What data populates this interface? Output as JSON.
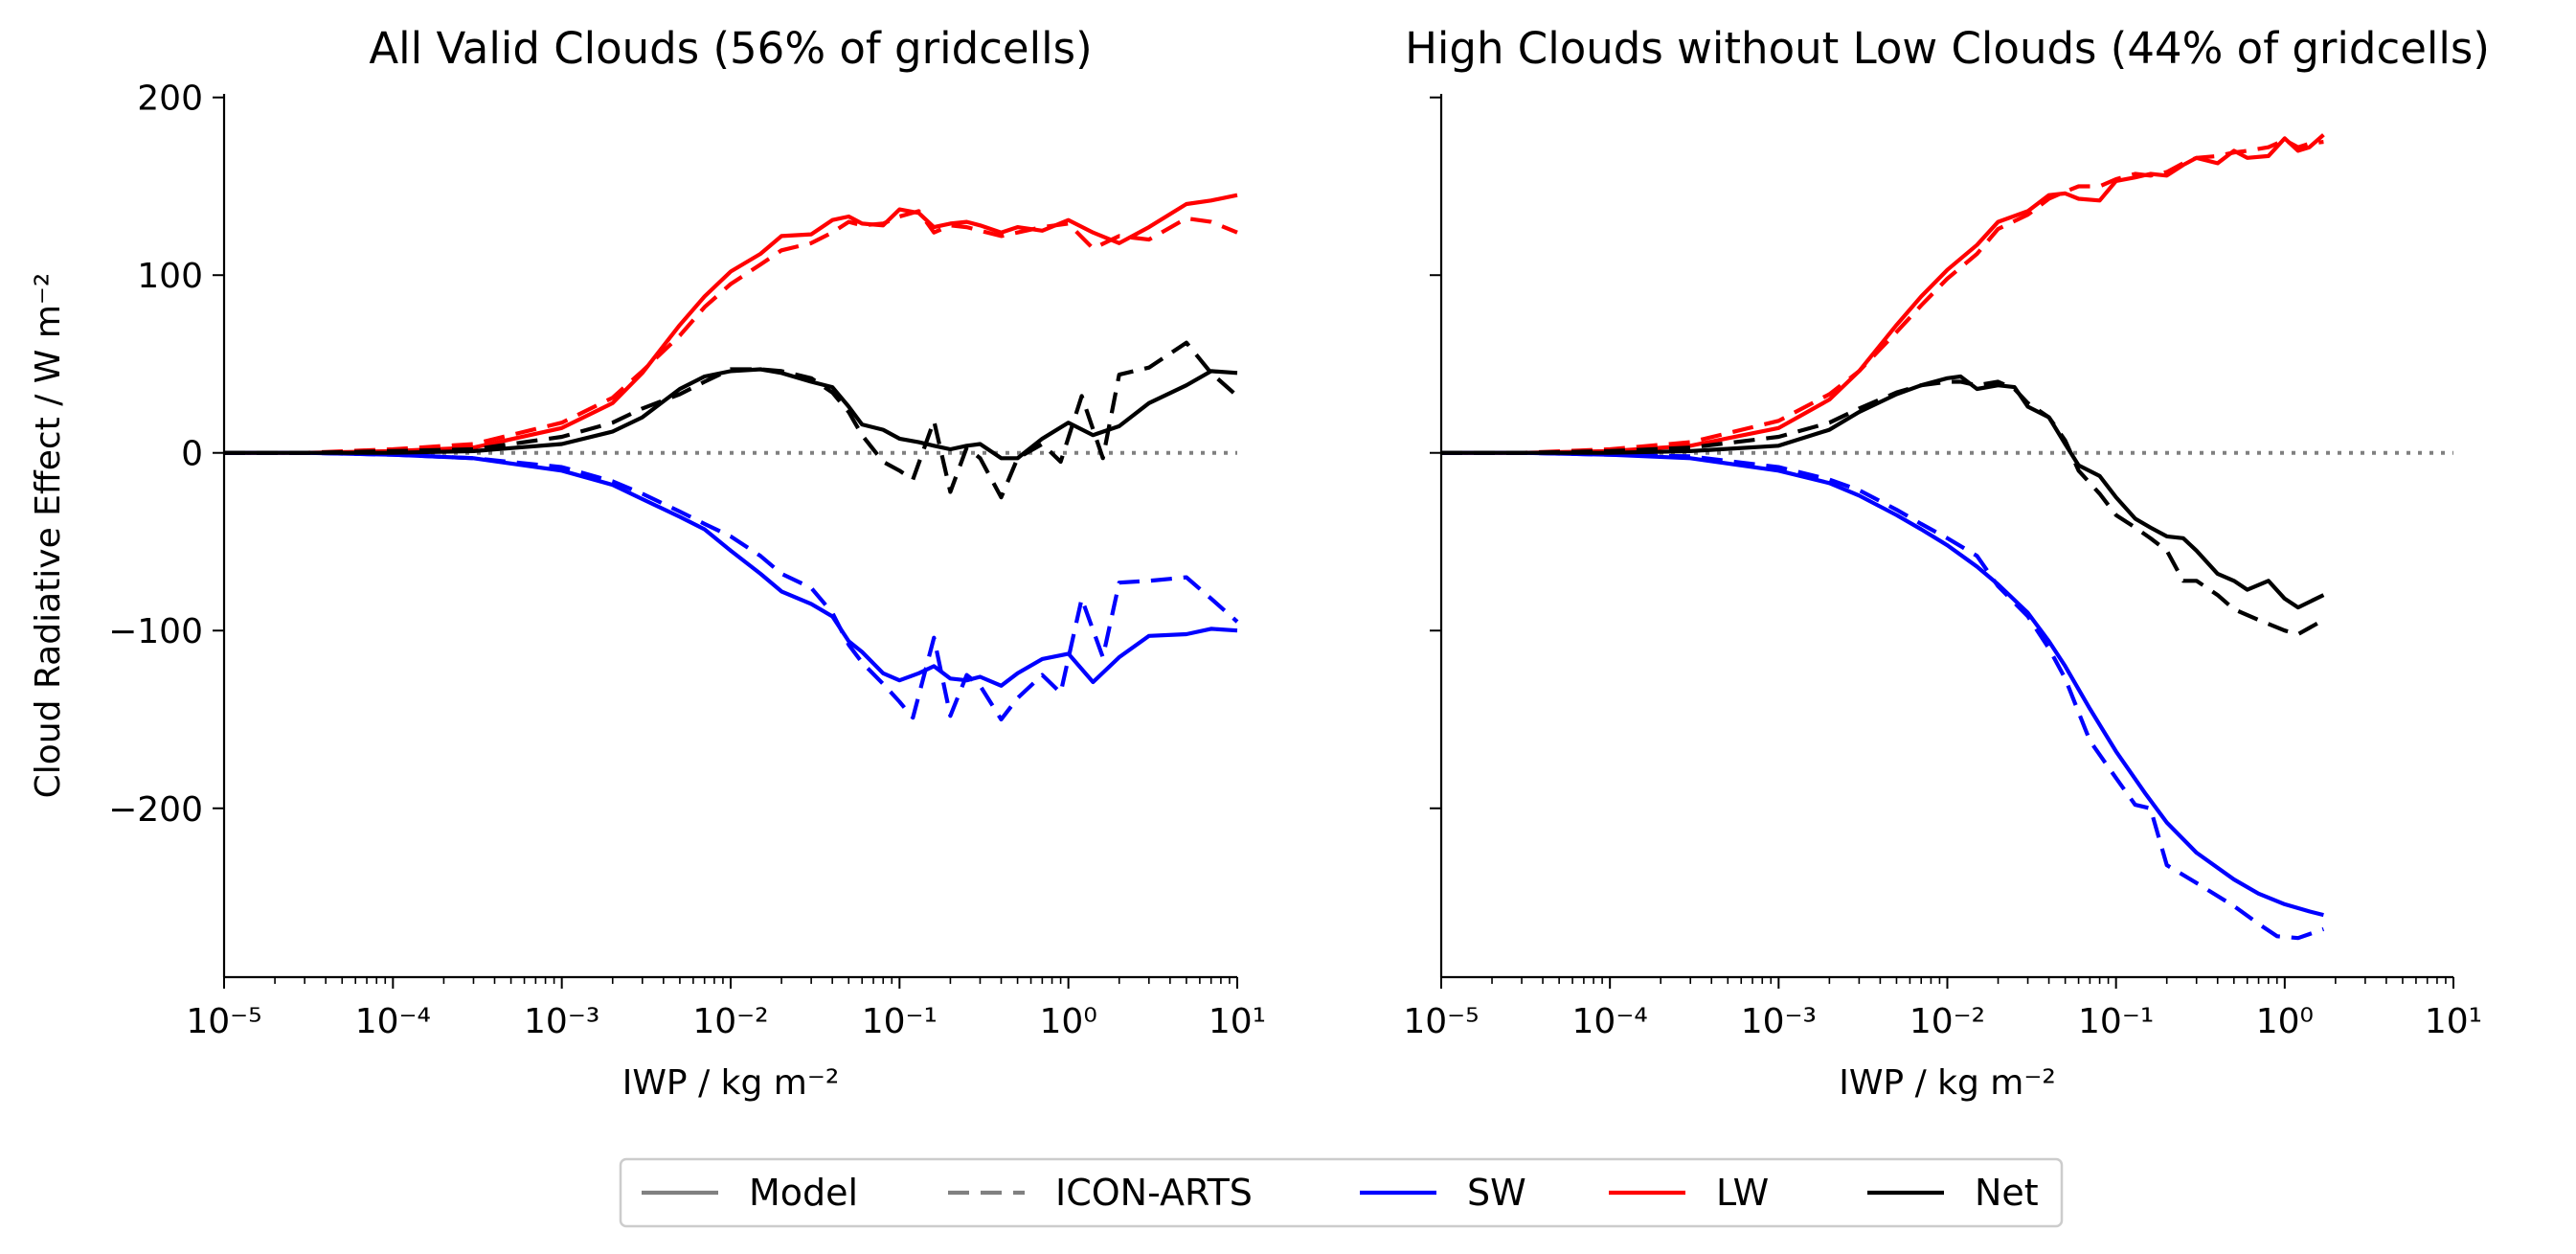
{
  "legend": {
    "items": [
      {
        "label": "Model",
        "color": "#808080",
        "dash": "solid"
      },
      {
        "label": "ICON-ARTS",
        "color": "#808080",
        "dash": "dashed"
      },
      {
        "label": "SW",
        "color": "#0000ff",
        "dash": "solid"
      },
      {
        "label": "LW",
        "color": "#ff0000",
        "dash": "solid"
      },
      {
        "label": "Net",
        "color": "#000000",
        "dash": "solid"
      }
    ],
    "placement": "bottom-center"
  },
  "chart_data": [
    {
      "type": "line",
      "title": "All Valid Clouds (56% of gridcells)",
      "xlabel": "IWP / kg m⁻²",
      "ylabel": "Cloud Radiative Effect / W m⁻²",
      "xscale": "log",
      "xlim": [
        1e-05,
        10
      ],
      "ylim": [
        -295,
        202
      ],
      "x_tick_labels": [
        "10⁻⁵",
        "10⁻⁴",
        "10⁻³",
        "10⁻²",
        "10⁻¹",
        "10⁰",
        "10¹"
      ],
      "y_tick_labels": [
        "200",
        "100",
        "0",
        "−100",
        "−200"
      ],
      "y_ticks": [
        200,
        100,
        0,
        -100,
        -200
      ],
      "zero_line": {
        "style": "dotted",
        "color": "#808080"
      },
      "series": [
        {
          "component": "LW",
          "source": "Model",
          "color": "#ff0000",
          "dash": "solid",
          "x": [
            1e-05,
            3e-05,
            0.0001,
            0.0003,
            0.001,
            0.002,
            0.003,
            0.005,
            0.007,
            0.01,
            0.015,
            0.02,
            0.03,
            0.04,
            0.05,
            0.06,
            0.08,
            0.1,
            0.13,
            0.16,
            0.2,
            0.25,
            0.3,
            0.4,
            0.5,
            0.7,
            1.0,
            1.4,
            2.0,
            3.0,
            5.0,
            7.0,
            10.0
          ],
          "y": [
            0,
            0,
            1,
            3,
            14,
            28,
            45,
            72,
            88,
            102,
            112,
            122,
            123,
            131,
            133,
            129,
            128,
            137,
            135,
            127,
            129,
            130,
            128,
            124,
            127,
            125,
            131,
            124,
            118,
            127,
            140,
            142,
            145
          ]
        },
        {
          "component": "LW",
          "source": "ICON-ARTS",
          "color": "#ff0000",
          "dash": "dashed",
          "x": [
            1e-05,
            3e-05,
            0.0001,
            0.0003,
            0.001,
            0.002,
            0.003,
            0.005,
            0.007,
            0.01,
            0.015,
            0.02,
            0.03,
            0.04,
            0.05,
            0.06,
            0.08,
            0.1,
            0.13,
            0.16,
            0.2,
            0.25,
            0.3,
            0.4,
            0.5,
            0.7,
            1.0,
            1.4,
            2.0,
            3.0,
            5.0,
            7.0,
            10.0
          ],
          "y": [
            0,
            0,
            2,
            5,
            17,
            31,
            46,
            66,
            82,
            95,
            106,
            114,
            118,
            124,
            130,
            128,
            129,
            133,
            136,
            124,
            128,
            127,
            125,
            122,
            124,
            127,
            129,
            115,
            122,
            120,
            132,
            130,
            124
          ]
        },
        {
          "component": "SW",
          "source": "Model",
          "color": "#0000ff",
          "dash": "solid",
          "x": [
            1e-05,
            3e-05,
            0.0001,
            0.0003,
            0.001,
            0.002,
            0.003,
            0.005,
            0.007,
            0.01,
            0.015,
            0.02,
            0.03,
            0.04,
            0.05,
            0.06,
            0.08,
            0.1,
            0.13,
            0.16,
            0.2,
            0.25,
            0.3,
            0.4,
            0.5,
            0.7,
            1.0,
            1.4,
            2.0,
            3.0,
            5.0,
            7.0,
            10.0
          ],
          "y": [
            0,
            0,
            -1,
            -3,
            -10,
            -18,
            -26,
            -36,
            -43,
            -55,
            -68,
            -78,
            -85,
            -92,
            -106,
            -112,
            -124,
            -128,
            -124,
            -120,
            -127,
            -128,
            -126,
            -131,
            -124,
            -116,
            -113,
            -129,
            -115,
            -103,
            -102,
            -99,
            -100
          ]
        },
        {
          "component": "SW",
          "source": "ICON-ARTS",
          "color": "#0000ff",
          "dash": "dashed",
          "x": [
            1e-05,
            3e-05,
            0.0001,
            0.0003,
            0.001,
            0.002,
            0.003,
            0.005,
            0.007,
            0.01,
            0.015,
            0.02,
            0.03,
            0.04,
            0.05,
            0.06,
            0.08,
            0.1,
            0.12,
            0.16,
            0.2,
            0.25,
            0.3,
            0.4,
            0.5,
            0.7,
            0.9,
            1.2,
            1.6,
            2.0,
            3.0,
            5.0,
            7.0,
            10.0
          ],
          "y": [
            0,
            0,
            -1,
            -3,
            -8,
            -16,
            -23,
            -33,
            -40,
            -47,
            -58,
            -68,
            -76,
            -90,
            -108,
            -118,
            -130,
            -140,
            -149,
            -104,
            -148,
            -125,
            -131,
            -150,
            -138,
            -125,
            -135,
            -82,
            -115,
            -73,
            -72,
            -70,
            -82,
            -95
          ]
        },
        {
          "component": "Net",
          "source": "Model",
          "color": "#000000",
          "dash": "solid",
          "x": [
            1e-05,
            3e-05,
            0.0001,
            0.0003,
            0.001,
            0.002,
            0.003,
            0.005,
            0.007,
            0.01,
            0.015,
            0.02,
            0.03,
            0.04,
            0.05,
            0.06,
            0.08,
            0.1,
            0.13,
            0.16,
            0.2,
            0.25,
            0.3,
            0.4,
            0.5,
            0.7,
            1.0,
            1.4,
            2.0,
            3.0,
            5.0,
            7.0,
            10.0
          ],
          "y": [
            0,
            0,
            0,
            1,
            5,
            12,
            20,
            36,
            43,
            46,
            47,
            45,
            40,
            37,
            26,
            16,
            13,
            8,
            6,
            4,
            2,
            4,
            5,
            -3,
            -3,
            8,
            17,
            10,
            15,
            28,
            38,
            46,
            45
          ]
        },
        {
          "component": "Net",
          "source": "ICON-ARTS",
          "color": "#000000",
          "dash": "dashed",
          "x": [
            1e-05,
            3e-05,
            0.0001,
            0.0003,
            0.001,
            0.002,
            0.003,
            0.005,
            0.007,
            0.01,
            0.015,
            0.02,
            0.03,
            0.04,
            0.05,
            0.06,
            0.08,
            0.1,
            0.12,
            0.16,
            0.2,
            0.25,
            0.3,
            0.4,
            0.5,
            0.7,
            0.9,
            1.2,
            1.6,
            2.0,
            3.0,
            5.0,
            7.0,
            10.0
          ],
          "y": [
            0,
            0,
            1,
            2,
            9,
            17,
            25,
            33,
            40,
            47,
            47,
            46,
            42,
            34,
            23,
            10,
            -5,
            -10,
            -15,
            18,
            -22,
            3,
            -3,
            -25,
            -3,
            5,
            -5,
            32,
            -3,
            44,
            48,
            62,
            45,
            32
          ]
        }
      ]
    },
    {
      "type": "line",
      "title": "High Clouds without Low Clouds (44% of gridcells)",
      "xlabel": "IWP / kg m⁻²",
      "ylabel": "",
      "xscale": "log",
      "xlim": [
        1e-05,
        10
      ],
      "ylim": [
        -295,
        202
      ],
      "x_tick_labels": [
        "10⁻⁵",
        "10⁻⁴",
        "10⁻³",
        "10⁻²",
        "10⁻¹",
        "10⁰",
        "10¹"
      ],
      "y_ticks": [
        200,
        100,
        0,
        -100,
        -200
      ],
      "zero_line": {
        "style": "dotted",
        "color": "#808080"
      },
      "series": [
        {
          "component": "LW",
          "source": "Model",
          "color": "#ff0000",
          "dash": "solid",
          "x": [
            1e-05,
            3e-05,
            0.0001,
            0.0003,
            0.001,
            0.002,
            0.003,
            0.005,
            0.007,
            0.01,
            0.015,
            0.02,
            0.03,
            0.04,
            0.05,
            0.06,
            0.08,
            0.1,
            0.13,
            0.16,
            0.2,
            0.25,
            0.3,
            0.4,
            0.5,
            0.6,
            0.8,
            1.0,
            1.2,
            1.4,
            1.7
          ],
          "y": [
            0,
            0,
            1,
            4,
            14,
            30,
            46,
            72,
            88,
            103,
            117,
            130,
            136,
            145,
            146,
            143,
            142,
            153,
            155,
            157,
            156,
            162,
            166,
            163,
            170,
            166,
            167,
            177,
            170,
            172,
            179
          ]
        },
        {
          "component": "LW",
          "source": "ICON-ARTS",
          "color": "#ff0000",
          "dash": "dashed",
          "x": [
            1e-05,
            3e-05,
            0.0001,
            0.0003,
            0.001,
            0.002,
            0.003,
            0.005,
            0.007,
            0.01,
            0.015,
            0.02,
            0.03,
            0.04,
            0.05,
            0.06,
            0.08,
            0.1,
            0.13,
            0.16,
            0.2,
            0.25,
            0.3,
            0.4,
            0.5,
            0.6,
            0.8,
            1.0,
            1.2,
            1.4,
            1.7
          ],
          "y": [
            0,
            0,
            2,
            6,
            18,
            33,
            46,
            68,
            83,
            98,
            112,
            126,
            134,
            143,
            147,
            150,
            150,
            154,
            157,
            156,
            158,
            163,
            166,
            167,
            169,
            170,
            172,
            176,
            172,
            174,
            175
          ]
        },
        {
          "component": "SW",
          "source": "Model",
          "color": "#0000ff",
          "dash": "solid",
          "x": [
            1e-05,
            3e-05,
            0.0001,
            0.0003,
            0.001,
            0.002,
            0.003,
            0.005,
            0.007,
            0.01,
            0.015,
            0.02,
            0.03,
            0.04,
            0.05,
            0.07,
            0.1,
            0.15,
            0.2,
            0.3,
            0.5,
            0.7,
            1.0,
            1.4,
            1.7
          ],
          "y": [
            0,
            0,
            -1,
            -3,
            -10,
            -17,
            -24,
            -35,
            -43,
            -52,
            -64,
            -74,
            -90,
            -106,
            -120,
            -144,
            -168,
            -192,
            -208,
            -225,
            -240,
            -248,
            -254,
            -258,
            -260
          ]
        },
        {
          "component": "SW",
          "source": "ICON-ARTS",
          "color": "#0000ff",
          "dash": "dashed",
          "x": [
            1e-05,
            3e-05,
            0.0001,
            0.0003,
            0.001,
            0.002,
            0.003,
            0.005,
            0.007,
            0.01,
            0.015,
            0.02,
            0.03,
            0.04,
            0.05,
            0.07,
            0.1,
            0.13,
            0.16,
            0.2,
            0.3,
            0.5,
            0.7,
            0.9,
            1.2,
            1.7
          ],
          "y": [
            0,
            0,
            -1,
            -2,
            -8,
            -15,
            -21,
            -32,
            -40,
            -48,
            -58,
            -75,
            -92,
            -110,
            -127,
            -162,
            -183,
            -198,
            -200,
            -232,
            -242,
            -255,
            -265,
            -272,
            -273,
            -268
          ]
        },
        {
          "component": "Net",
          "source": "Model",
          "color": "#000000",
          "dash": "solid",
          "x": [
            1e-05,
            3e-05,
            0.0001,
            0.0003,
            0.001,
            0.002,
            0.003,
            0.005,
            0.007,
            0.01,
            0.012,
            0.015,
            0.02,
            0.025,
            0.03,
            0.04,
            0.05,
            0.06,
            0.08,
            0.1,
            0.13,
            0.16,
            0.2,
            0.25,
            0.3,
            0.4,
            0.5,
            0.6,
            0.8,
            1.0,
            1.2,
            1.7
          ],
          "y": [
            0,
            0,
            0,
            1,
            4,
            13,
            23,
            33,
            38,
            42,
            43,
            36,
            38,
            37,
            26,
            20,
            5,
            -7,
            -13,
            -25,
            -37,
            -42,
            -47,
            -48,
            -55,
            -68,
            -72,
            -77,
            -72,
            -82,
            -87,
            -80
          ]
        },
        {
          "component": "Net",
          "source": "ICON-ARTS",
          "color": "#000000",
          "dash": "dashed",
          "x": [
            1e-05,
            3e-05,
            0.0001,
            0.0003,
            0.001,
            0.002,
            0.003,
            0.005,
            0.007,
            0.01,
            0.012,
            0.015,
            0.02,
            0.025,
            0.03,
            0.04,
            0.05,
            0.06,
            0.08,
            0.1,
            0.13,
            0.16,
            0.2,
            0.25,
            0.3,
            0.4,
            0.5,
            0.7,
            1.0,
            1.2,
            1.7
          ],
          "y": [
            0,
            0,
            1,
            3,
            9,
            17,
            25,
            34,
            38,
            40,
            40,
            38,
            40,
            36,
            28,
            20,
            7,
            -10,
            -23,
            -35,
            -42,
            -48,
            -55,
            -72,
            -72,
            -80,
            -88,
            -94,
            -100,
            -102,
            -94
          ]
        }
      ]
    }
  ]
}
